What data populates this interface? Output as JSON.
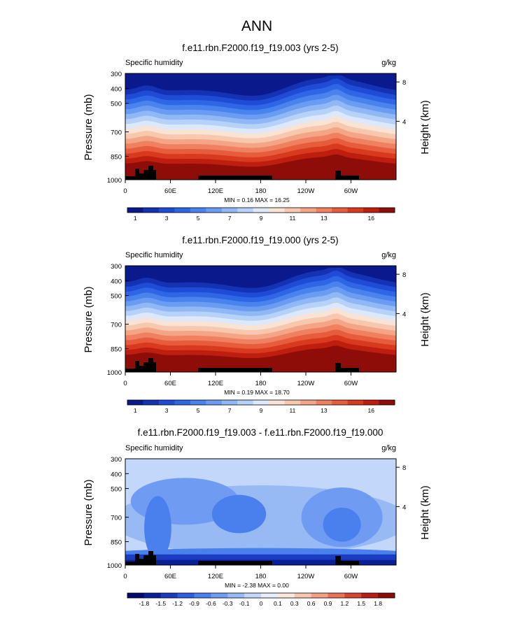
{
  "figure": {
    "title": "ANN"
  },
  "colors": {
    "seq": [
      "#0a1a8c",
      "#1433b4",
      "#1e4cd6",
      "#2e66e6",
      "#4a82ee",
      "#6a9df2",
      "#8fb8f5",
      "#b6d2f9",
      "#dde8fb",
      "#f8e3d4",
      "#f7c7ae",
      "#f4a585",
      "#ef8160",
      "#e65c3c",
      "#d8391f",
      "#bd1e0e",
      "#8f0d08"
    ],
    "div": [
      "#020a70",
      "#0a1e9a",
      "#1a3cc0",
      "#2e5ee0",
      "#4a7fee",
      "#6f9cf2",
      "#97baf5",
      "#c2d7fa",
      "#e4eefc",
      "#fde7dc",
      "#f8c6b0",
      "#f29f84",
      "#e87158",
      "#d84432",
      "#b81e15",
      "#8a0c07"
    ],
    "land": "#000000"
  },
  "chart_data": [
    {
      "type": "heatmap",
      "title": "f.e11.rbn.F2000.f19_f19.003 (yrs 2-5)",
      "field_label": "Specific humidity",
      "units": "g/kg",
      "ylabel": "Pressure (mb)",
      "y2label": "Height (km)",
      "yticks": [
        "300",
        "400",
        "500",
        "700",
        "850",
        "1000"
      ],
      "y2ticks": [
        "8",
        "4"
      ],
      "xticks": [
        "0",
        "60E",
        "120E",
        "180",
        "120W",
        "60W"
      ],
      "stats": "MIN =   0.16  MAX =  16.25",
      "colorbar_labels": [
        "1",
        "3",
        "5",
        "7",
        "9",
        "11",
        "13",
        "16"
      ],
      "min": 0.16,
      "max": 16.25
    },
    {
      "type": "heatmap",
      "title": "f.e11.rbn.F2000.f19_f19.000 (yrs 2-5)",
      "field_label": "Specific humidity",
      "units": "g/kg",
      "ylabel": "Pressure (mb)",
      "y2label": "Height (km)",
      "yticks": [
        "300",
        "400",
        "500",
        "700",
        "850",
        "1000"
      ],
      "y2ticks": [
        "8",
        "4"
      ],
      "xticks": [
        "0",
        "60E",
        "120E",
        "180",
        "120W",
        "60W"
      ],
      "stats": "MIN =   0.19  MAX =  18.70",
      "colorbar_labels": [
        "1",
        "3",
        "5",
        "7",
        "9",
        "11",
        "13",
        "16"
      ],
      "min": 0.19,
      "max": 18.7
    },
    {
      "type": "heatmap",
      "title": "f.e11.rbn.F2000.f19_f19.003 - f.e11.rbn.F2000.f19_f19.000",
      "field_label": "Specific humidity",
      "units": "g/kg",
      "ylabel": "Pressure (mb)",
      "y2label": "Height (km)",
      "yticks": [
        "300",
        "400",
        "500",
        "700",
        "850",
        "1000"
      ],
      "y2ticks": [
        "8",
        "4"
      ],
      "xticks": [
        "0",
        "60E",
        "120E",
        "180",
        "120W",
        "60W"
      ],
      "stats": "MIN =  -2.38  MAX =   0.00",
      "colorbar_labels": [
        "-1.8",
        "-1.5",
        "-1.2",
        "-0.9",
        "-0.6",
        "-0.3",
        "-0.1",
        "0",
        "0.1",
        "0.3",
        "0.6",
        "0.9",
        "1.2",
        "1.5",
        "1.8"
      ],
      "min": -2.38,
      "max": 0.0
    }
  ]
}
